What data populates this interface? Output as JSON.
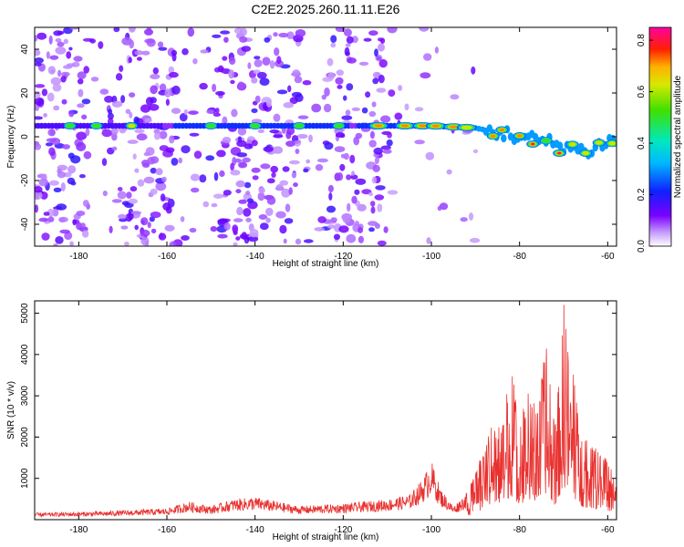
{
  "title": "C2E2.2025.260.11.11.E26",
  "colors": {
    "snr_line": "#e8312f",
    "spectro_background": "#ffffff",
    "axis": "#000000"
  },
  "chart_data": [
    {
      "type": "heatmap",
      "name": "spectrogram",
      "xlabel": "Height of straight line (km)",
      "ylabel": "Frequency (Hz)",
      "xlim": [
        -190,
        -58
      ],
      "ylim": [
        -50,
        50
      ],
      "xticks": [
        -180,
        -160,
        -140,
        -120,
        -100,
        -80,
        -60
      ],
      "yticks": [
        -40,
        -20,
        0,
        20,
        40
      ],
      "colorbar": {
        "label": "Normalized spectral amplitude",
        "range": [
          0.0,
          0.85
        ],
        "ticks": [
          0.0,
          0.2,
          0.4,
          0.6,
          0.8
        ],
        "colormap": "rainbow (white-violet-blue-cyan-green-yellow-red-magenta)"
      },
      "ridge": {
        "description": "strong persistent signal near ~5 Hz, bending downward after -85 km",
        "points": [
          [
            -190,
            5
          ],
          [
            -160,
            5
          ],
          [
            -120,
            5
          ],
          [
            -100,
            5
          ],
          [
            -90,
            4
          ],
          [
            -85,
            2
          ],
          [
            -80,
            0
          ],
          [
            -75,
            -2
          ],
          [
            -70,
            -4
          ],
          [
            -65,
            -7
          ],
          [
            -60,
            -2
          ]
        ]
      }
    },
    {
      "type": "line",
      "name": "snr",
      "xlabel": "Height of straight line (km)",
      "ylabel": "SNR (10 * v/v)",
      "xlim": [
        -190,
        -58
      ],
      "ylim": [
        0,
        5300
      ],
      "xticks": [
        -180,
        -160,
        -140,
        -120,
        -100,
        -80,
        -60
      ],
      "yticks": [
        1000,
        2000,
        3000,
        4000,
        5000
      ],
      "series": [
        {
          "name": "SNR",
          "envelope_x": [
            -190,
            -175,
            -160,
            -155,
            -150,
            -145,
            -140,
            -135,
            -130,
            -120,
            -110,
            -105,
            -102,
            -100,
            -98,
            -95,
            -92,
            -90,
            -88,
            -86,
            -84,
            -82,
            -80,
            -78,
            -76,
            -74,
            -72,
            -70,
            -68,
            -66,
            -64,
            -62,
            -60,
            -58
          ],
          "envelope_y": [
            150,
            180,
            250,
            400,
            300,
            450,
            500,
            400,
            300,
            350,
            450,
            550,
            900,
            1300,
            700,
            300,
            600,
            1200,
            1700,
            2600,
            2200,
            3900,
            2400,
            3200,
            2700,
            4300,
            2200,
            5300,
            3800,
            2100,
            1900,
            1700,
            1500,
            800
          ]
        }
      ]
    }
  ]
}
